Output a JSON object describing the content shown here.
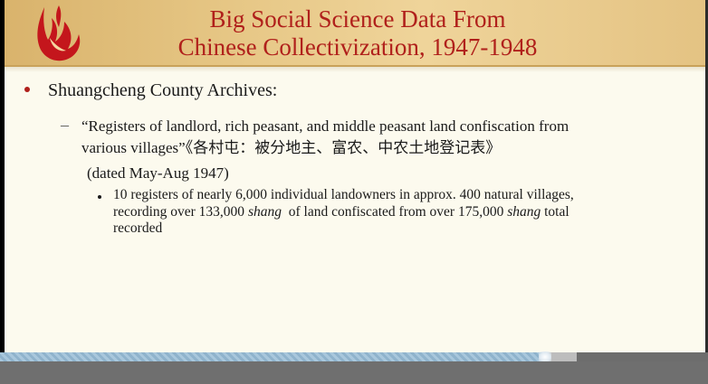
{
  "slide": {
    "title_line1": "Big Social Science Data From",
    "title_line2": "Chinese Collectivization, 1947-1948",
    "bullet1": "Shuangcheng County Archives:",
    "sub_dash": "–",
    "sub_line1": "“Registers of landlord, rich peasant, and middle peasant land confiscation from",
    "sub_line2": "various villages”《各村屯：被分地主、富农、中农土地登记表》",
    "dated": "(dated May-Aug 1947)",
    "subsub_line1": "10 registers of nearly 6,000 individual landowners in approx. 400 natural villages,",
    "subsub_line2_a": "recording over 133,000 ",
    "subsub_line2_shang1": "shang",
    "subsub_line2_b": "  of land confiscated from over 175,000 ",
    "subsub_line2_shang2": "shang",
    "subsub_line2_c": " total",
    "subsub_line3": "recorded"
  },
  "video": {
    "progress": 0.77,
    "buffered": 0.815
  },
  "colors": {
    "title": "#b0201b",
    "header": "#e7c887",
    "background": "#fcfaee",
    "progress_fill": "#a8c7dc",
    "logo_flame": "#c4161c"
  },
  "icons": {
    "logo": "flame-logo-icon"
  }
}
